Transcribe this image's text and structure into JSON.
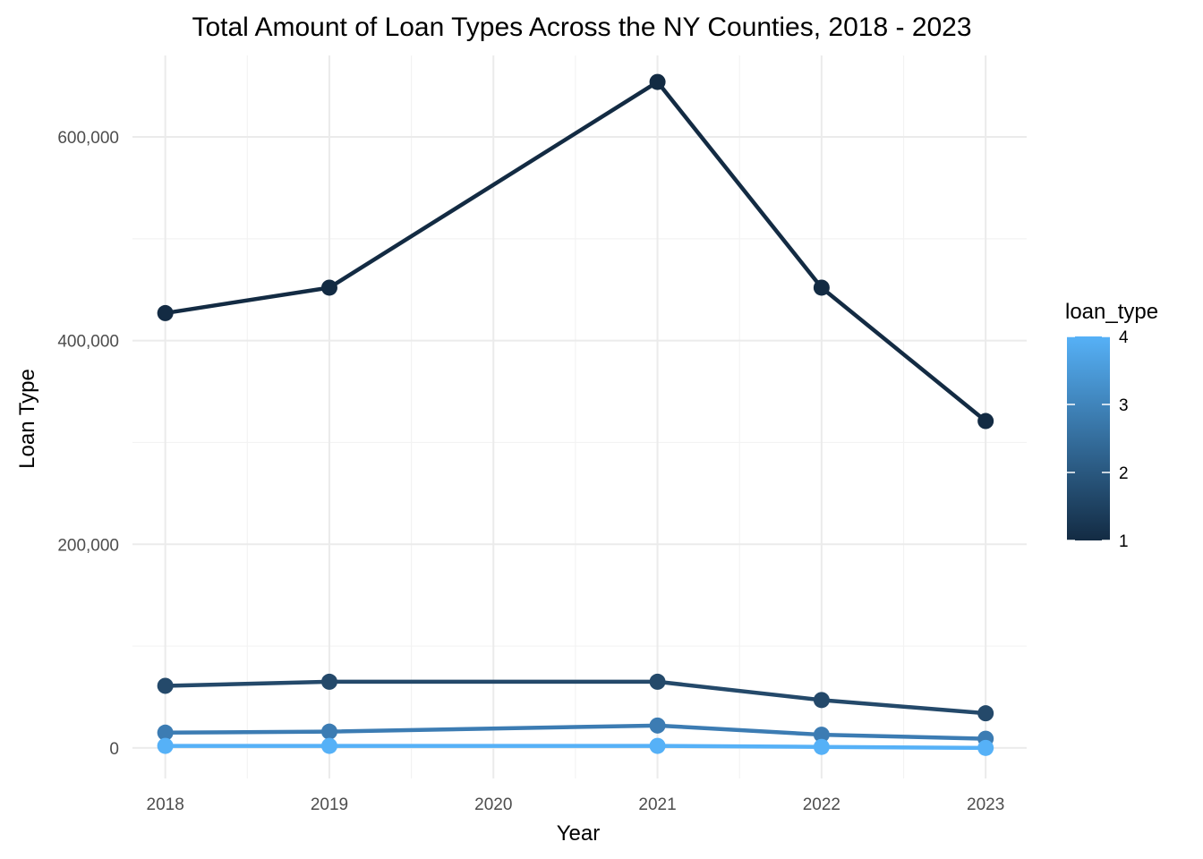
{
  "chart_data": {
    "type": "line",
    "title": "Total Amount of Loan Types Across the NY Counties, 2018 - 2023",
    "xlabel": "Year",
    "ylabel": "Loan Type",
    "x": [
      2018,
      2019,
      2021,
      2022,
      2023
    ],
    "x_ticks": [
      "2018",
      "2019",
      "2020",
      "2021",
      "2022",
      "2023"
    ],
    "xlim": [
      2017.8,
      2023.25
    ],
    "ylim": [
      -30000,
      680000
    ],
    "y_ticks": [
      0,
      200000,
      400000,
      600000
    ],
    "y_tick_labels": [
      "0",
      "200,000",
      "400,000",
      "600,000"
    ],
    "grid": true,
    "legend": {
      "title": "loan_type",
      "placement": "right",
      "kind": "colorbar",
      "range": [
        1,
        4
      ],
      "tick_labels": [
        "1",
        "2",
        "3",
        "4"
      ],
      "low_color": "#132B43",
      "high_color": "#56B1F7"
    },
    "series": [
      {
        "loan_type": 1,
        "color": "#132B43",
        "values": [
          427000,
          452000,
          654000,
          452000,
          321000
        ]
      },
      {
        "loan_type": 2,
        "color": "#24496a",
        "values": [
          61000,
          65000,
          65000,
          47000,
          34000
        ]
      },
      {
        "loan_type": 3,
        "color": "#3c7cb3",
        "values": [
          15000,
          16000,
          22000,
          13000,
          9000
        ]
      },
      {
        "loan_type": 4,
        "color": "#56B1F7",
        "values": [
          2000,
          2000,
          2000,
          1000,
          0
        ]
      }
    ]
  }
}
